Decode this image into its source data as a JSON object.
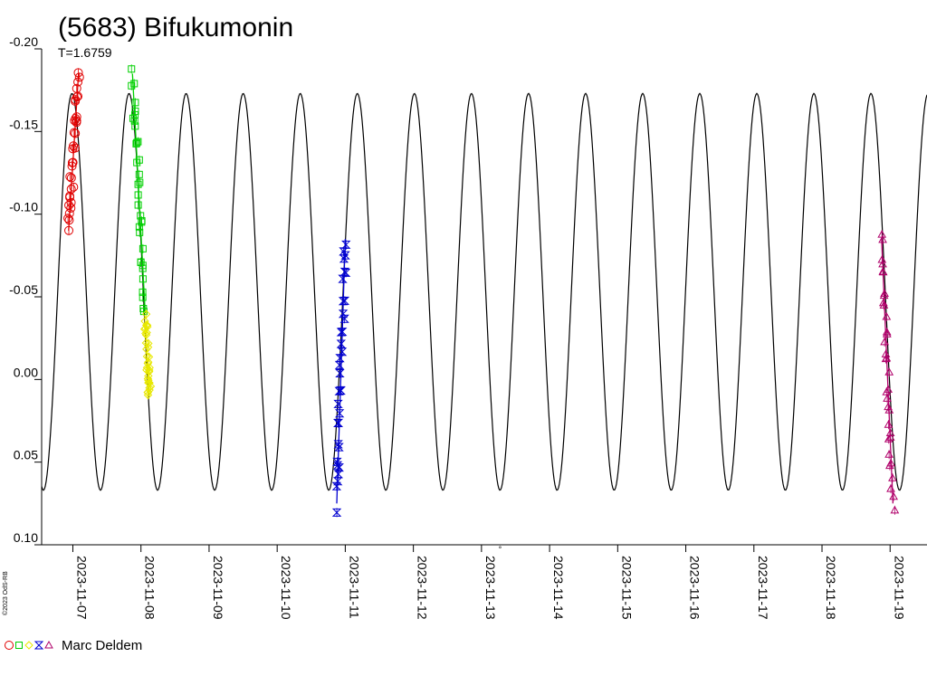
{
  "chart_data": {
    "type": "scatter",
    "title": "(5683) Bifukumonin",
    "subtitle": "T=1.6759",
    "xlabel": "",
    "ylabel": "",
    "y_ticks": [
      "-0.20",
      "-0.15",
      "-0.10",
      "-0.05",
      "0.00",
      "0.05",
      "0.10"
    ],
    "y_values": [
      -0.2,
      -0.15,
      -0.1,
      -0.05,
      0.0,
      0.05,
      0.1
    ],
    "ylim": [
      -0.2,
      0.1
    ],
    "y_inverted": true,
    "x_ticks": [
      "2023-11-07",
      "2023-11-08",
      "2023-11-09",
      "2023-11-10",
      "2023-11-11",
      "2023-11-12",
      "2023-11-13",
      "2023-11-14",
      "2023-11-15",
      "2023-11-16",
      "2023-11-17",
      "2023-11-18",
      "2023-11-19"
    ],
    "xlim": [
      "2023-11-06 13:00",
      "2023-11-19 13:00"
    ],
    "model_curve": {
      "min": -0.173,
      "max": 0.067,
      "period_days": 0.838,
      "color": "#000000"
    },
    "series": [
      {
        "color": "#e00000",
        "marker": "circle",
        "x_range": [
          "2023-11-06 22:30",
          "2023-11-07 02:00"
        ],
        "y_range": [
          -0.09,
          -0.185
        ]
      },
      {
        "color": "#00d000",
        "marker": "square",
        "x_range": [
          "2023-11-07 21:00",
          "2023-11-08 01:30"
        ],
        "y_range": [
          -0.185,
          -0.04
        ]
      },
      {
        "color": "#e8e800",
        "marker": "diamond",
        "x_range": [
          "2023-11-08 01:30",
          "2023-11-08 03:00"
        ],
        "y_range": [
          -0.035,
          0.01
        ]
      },
      {
        "color": "#0000d0",
        "marker": "hourglass",
        "x_range": [
          "2023-11-10 21:00",
          "2023-11-11 00:00"
        ],
        "y_range": [
          0.075,
          -0.085
        ]
      },
      {
        "color": "#b0006a",
        "marker": "triangle",
        "x_range": [
          "2023-11-18 21:00",
          "2023-11-19 01:00"
        ],
        "y_range": [
          -0.085,
          0.075
        ]
      }
    ],
    "legend": {
      "position": "bottom-left",
      "label": "Marc Deldem"
    },
    "credit": "©2023 OdS-RB",
    "grid": false
  }
}
